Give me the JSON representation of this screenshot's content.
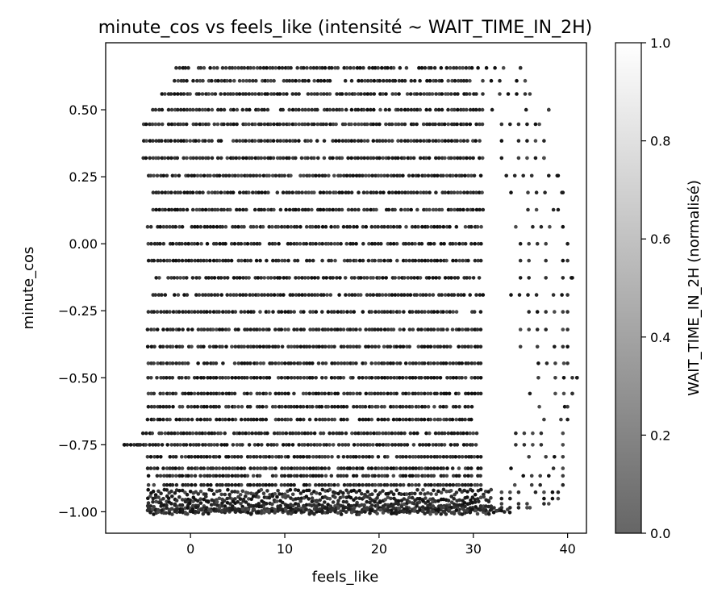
{
  "chart_data": {
    "type": "scatter",
    "title": "minute_cos vs feels_like (intensité ~ WAIT_TIME_IN_2H)",
    "xlabel": "feels_like",
    "ylabel": "minute_cos",
    "xlim": [
      -9,
      42
    ],
    "ylim": [
      -1.08,
      0.75
    ],
    "xticks": [
      0,
      10,
      20,
      30,
      40
    ],
    "xtick_labels": [
      "0",
      "10",
      "20",
      "30",
      "40"
    ],
    "yticks": [
      -1.0,
      -0.75,
      -0.5,
      -0.25,
      0.0,
      0.25,
      0.5
    ],
    "ytick_labels": [
      "−1.00",
      "−0.75",
      "−0.50",
      "−0.25",
      "0.00",
      "0.25",
      "0.50"
    ],
    "grid": false,
    "point_color": "#1a1a1a",
    "colorbar": {
      "label": "WAIT_TIME_IN_2H (normalisé)",
      "range": [
        0.0,
        1.0
      ],
      "ticks": [
        0.0,
        0.2,
        0.4,
        0.6,
        0.8,
        1.0
      ],
      "tick_labels": [
        "0.0",
        "0.2",
        "0.4",
        "0.6",
        "0.8",
        "1.0"
      ],
      "colormap": [
        "#666666",
        "#ffffff"
      ]
    },
    "y_levels": [
      0.656,
      0.608,
      0.559,
      0.5,
      0.446,
      0.384,
      0.32,
      0.254,
      0.191,
      0.127,
      0.063,
      0.0,
      -0.063,
      -0.127,
      -0.191,
      -0.254,
      -0.32,
      -0.384,
      -0.446,
      -0.5,
      -0.559,
      -0.608,
      -0.656,
      -0.707,
      -0.75,
      -0.795,
      -0.838,
      -0.866,
      -0.9,
      -0.927,
      -0.951,
      -0.97,
      -0.985,
      -0.995,
      -1.0
    ],
    "x_ranges": [
      [
        -1.5,
        30,
        30.5,
        35
      ],
      [
        -2,
        30,
        31,
        35.5
      ],
      [
        -3,
        30.5,
        31,
        36
      ],
      [
        -4,
        31,
        32,
        38
      ],
      [
        -5,
        31,
        33,
        37
      ],
      [
        -5,
        31,
        33,
        37.5
      ],
      [
        -5,
        31,
        33,
        37.5
      ],
      [
        -4.5,
        31,
        33.5,
        39
      ],
      [
        -4,
        31,
        34,
        39.5
      ],
      [
        -4,
        31,
        34,
        39
      ],
      [
        -4.5,
        31,
        34.5,
        39.5
      ],
      [
        -4.5,
        31,
        35,
        40
      ],
      [
        -4.5,
        31,
        35,
        40
      ],
      [
        -4,
        31,
        35,
        40.5
      ],
      [
        -4,
        31,
        34,
        40
      ],
      [
        -4.5,
        31,
        35,
        40
      ],
      [
        -4.5,
        31,
        35,
        40
      ],
      [
        -4.5,
        31,
        35,
        40
      ],
      [
        -4.5,
        31,
        36,
        40
      ],
      [
        -4.5,
        31,
        36,
        41
      ],
      [
        -4.5,
        31,
        36,
        40.5
      ],
      [
        -4.5,
        30,
        37,
        40
      ],
      [
        -4.5,
        30,
        37.5,
        40
      ],
      [
        -5,
        30.5,
        34.5,
        39.5
      ],
      [
        -7,
        30.5,
        34.5,
        39.5
      ],
      [
        -4.5,
        31,
        35,
        39.5
      ],
      [
        -4.5,
        31,
        34,
        39.5
      ],
      [
        -4.5,
        31,
        33.5,
        39.5
      ],
      [
        -4.5,
        31.5,
        33.5,
        39.5
      ],
      [
        -4.5,
        32,
        33,
        39
      ],
      [
        -4.5,
        32,
        33,
        39
      ],
      [
        -4.5,
        32,
        33,
        38
      ],
      [
        -4.5,
        32,
        33,
        36
      ],
      [
        -4.5,
        33,
        0,
        0
      ],
      [
        -4.5,
        34,
        0,
        0
      ]
    ],
    "note_points": [
      {
        "x": -7,
        "y": -0.75
      },
      {
        "x": -5.5,
        "y": -0.75
      },
      {
        "x": 38,
        "y": 0.5
      },
      {
        "x": 41,
        "y": -0.5
      }
    ]
  }
}
